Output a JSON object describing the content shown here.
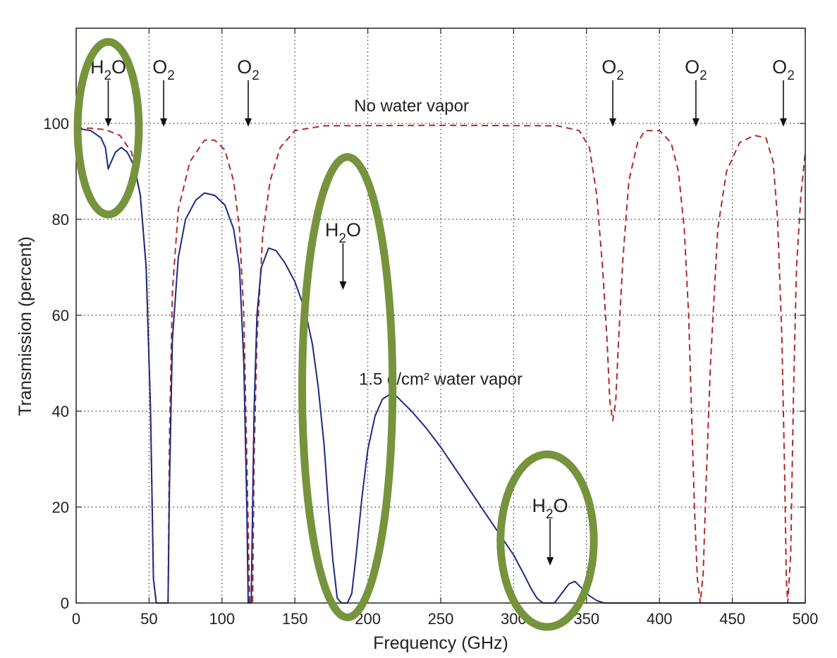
{
  "chart_data": {
    "type": "line",
    "xlabel": "Frequency (GHz)",
    "ylabel": "Transmission (percent)",
    "xlim": [
      0,
      500
    ],
    "ylim": [
      0,
      100
    ],
    "x_ticks": [
      0,
      50,
      100,
      150,
      200,
      250,
      300,
      350,
      400,
      450,
      500
    ],
    "y_ticks": [
      0,
      20,
      40,
      60,
      80,
      100
    ],
    "grid": true,
    "series": [
      {
        "name": "No water vapor",
        "style": "dashed",
        "color": "#b02a2a",
        "points": [
          [
            0,
            99
          ],
          [
            10,
            99
          ],
          [
            20,
            98.7
          ],
          [
            30,
            97.5
          ],
          [
            38,
            94
          ],
          [
            44,
            85
          ],
          [
            48,
            70
          ],
          [
            51,
            40
          ],
          [
            53,
            5
          ],
          [
            55,
            0
          ],
          [
            63,
            0
          ],
          [
            64,
            35
          ],
          [
            66,
            65
          ],
          [
            70,
            82
          ],
          [
            78,
            92
          ],
          [
            88,
            96.5
          ],
          [
            95,
            96.5
          ],
          [
            102,
            94.5
          ],
          [
            108,
            88
          ],
          [
            112,
            78
          ],
          [
            115,
            60
          ],
          [
            117,
            30
          ],
          [
            119,
            0
          ],
          [
            121,
            0
          ],
          [
            122,
            30
          ],
          [
            124,
            55
          ],
          [
            128,
            77
          ],
          [
            133,
            88
          ],
          [
            140,
            95
          ],
          [
            150,
            98.5
          ],
          [
            170,
            99.5
          ],
          [
            250,
            99.6
          ],
          [
            330,
            99.5
          ],
          [
            345,
            98.5
          ],
          [
            352,
            95
          ],
          [
            357,
            85
          ],
          [
            361,
            70
          ],
          [
            364,
            55
          ],
          [
            366,
            42
          ],
          [
            368,
            38
          ],
          [
            370,
            42
          ],
          [
            372,
            55
          ],
          [
            375,
            72
          ],
          [
            379,
            88
          ],
          [
            385,
            96
          ],
          [
            390,
            98.5
          ],
          [
            400,
            98.5
          ],
          [
            408,
            96
          ],
          [
            413,
            90
          ],
          [
            417,
            78
          ],
          [
            420,
            60
          ],
          [
            422,
            40
          ],
          [
            424,
            20
          ],
          [
            426,
            5
          ],
          [
            428,
            0
          ],
          [
            430,
            6
          ],
          [
            432,
            25
          ],
          [
            435,
            50
          ],
          [
            440,
            78
          ],
          [
            446,
            90
          ],
          [
            455,
            96
          ],
          [
            465,
            97.5
          ],
          [
            473,
            97
          ],
          [
            478,
            92
          ],
          [
            481,
            80
          ],
          [
            484,
            55
          ],
          [
            486,
            25
          ],
          [
            487,
            5
          ],
          [
            488,
            0
          ],
          [
            490,
            10
          ],
          [
            492,
            45
          ],
          [
            494,
            70
          ],
          [
            497,
            85
          ],
          [
            500,
            94
          ]
        ]
      },
      {
        "name": "1.5 g/cm2 water vapor",
        "style": "solid",
        "color": "#1d2a80",
        "points": [
          [
            0,
            99
          ],
          [
            10,
            98.5
          ],
          [
            17,
            97
          ],
          [
            20,
            95
          ],
          [
            22,
            90.5
          ],
          [
            24,
            92
          ],
          [
            27,
            94
          ],
          [
            31,
            95
          ],
          [
            35,
            94
          ],
          [
            40,
            91
          ],
          [
            44,
            85
          ],
          [
            48,
            70
          ],
          [
            51,
            40
          ],
          [
            53,
            5
          ],
          [
            55,
            0
          ],
          [
            63,
            0
          ],
          [
            64,
            25
          ],
          [
            66,
            55
          ],
          [
            70,
            72
          ],
          [
            75,
            80
          ],
          [
            82,
            84
          ],
          [
            88,
            85.5
          ],
          [
            95,
            85
          ],
          [
            102,
            83
          ],
          [
            108,
            78
          ],
          [
            112,
            70
          ],
          [
            115,
            50
          ],
          [
            117,
            20
          ],
          [
            118,
            0
          ],
          [
            120,
            0
          ],
          [
            122,
            40
          ],
          [
            124,
            60
          ],
          [
            127,
            70
          ],
          [
            132,
            74
          ],
          [
            137,
            73.5
          ],
          [
            143,
            71
          ],
          [
            150,
            67
          ],
          [
            157,
            61
          ],
          [
            162,
            54
          ],
          [
            166,
            45
          ],
          [
            170,
            33
          ],
          [
            173,
            20
          ],
          [
            176,
            9
          ],
          [
            179,
            1
          ],
          [
            182,
            0
          ],
          [
            186,
            0
          ],
          [
            189,
            2
          ],
          [
            192,
            10
          ],
          [
            196,
            22
          ],
          [
            200,
            32
          ],
          [
            205,
            39
          ],
          [
            210,
            42.5
          ],
          [
            215,
            43.5
          ],
          [
            220,
            43
          ],
          [
            230,
            40
          ],
          [
            240,
            36.5
          ],
          [
            250,
            32.5
          ],
          [
            260,
            28
          ],
          [
            270,
            23.5
          ],
          [
            280,
            19
          ],
          [
            290,
            14.5
          ],
          [
            300,
            10
          ],
          [
            307,
            6
          ],
          [
            312,
            3
          ],
          [
            316,
            1
          ],
          [
            320,
            0
          ],
          [
            328,
            0
          ],
          [
            333,
            2
          ],
          [
            338,
            4
          ],
          [
            342,
            4.5
          ],
          [
            347,
            3
          ],
          [
            352,
            1.5
          ],
          [
            357,
            0.5
          ],
          [
            362,
            0
          ],
          [
            368,
            0
          ],
          [
            500,
            0
          ]
        ]
      }
    ],
    "annotations": {
      "series_labels": [
        {
          "text": "No water vapor",
          "x": 230,
          "y": 102.5
        },
        {
          "text": "1.5 g/cm² water vapor",
          "x": 250,
          "y": 45.5
        }
      ],
      "absorption_lines": [
        {
          "molecule": "H",
          "subscript": "2",
          "suffix": "O",
          "x": 22,
          "y": 99
        },
        {
          "molecule": "O",
          "subscript": "2",
          "suffix": "",
          "x": 60,
          "y": 99
        },
        {
          "molecule": "O",
          "subscript": "2",
          "suffix": "",
          "x": 118,
          "y": 99
        },
        {
          "molecule": "O",
          "subscript": "2",
          "suffix": "",
          "x": 368,
          "y": 99
        },
        {
          "molecule": "O",
          "subscript": "2",
          "suffix": "",
          "x": 425,
          "y": 99
        },
        {
          "molecule": "O",
          "subscript": "2",
          "suffix": "",
          "x": 485,
          "y": 99
        },
        {
          "molecule": "H",
          "subscript": "2",
          "suffix": "O",
          "x": 183,
          "y": 65
        },
        {
          "molecule": "H",
          "subscript": "2",
          "suffix": "O",
          "x": 325,
          "y": 7.5
        }
      ],
      "highlight_ellipses": [
        {
          "cx": 22,
          "cy": 99,
          "rx_ghz": 21,
          "ry_pct": 18
        },
        {
          "cx": 186,
          "cy": 45,
          "rx_ghz": 31,
          "ry_pct": 48
        },
        {
          "cx": 323,
          "cy": 13,
          "rx_ghz": 32,
          "ry_pct": 18
        },
        {
          "color": "#77933c"
        }
      ]
    }
  }
}
